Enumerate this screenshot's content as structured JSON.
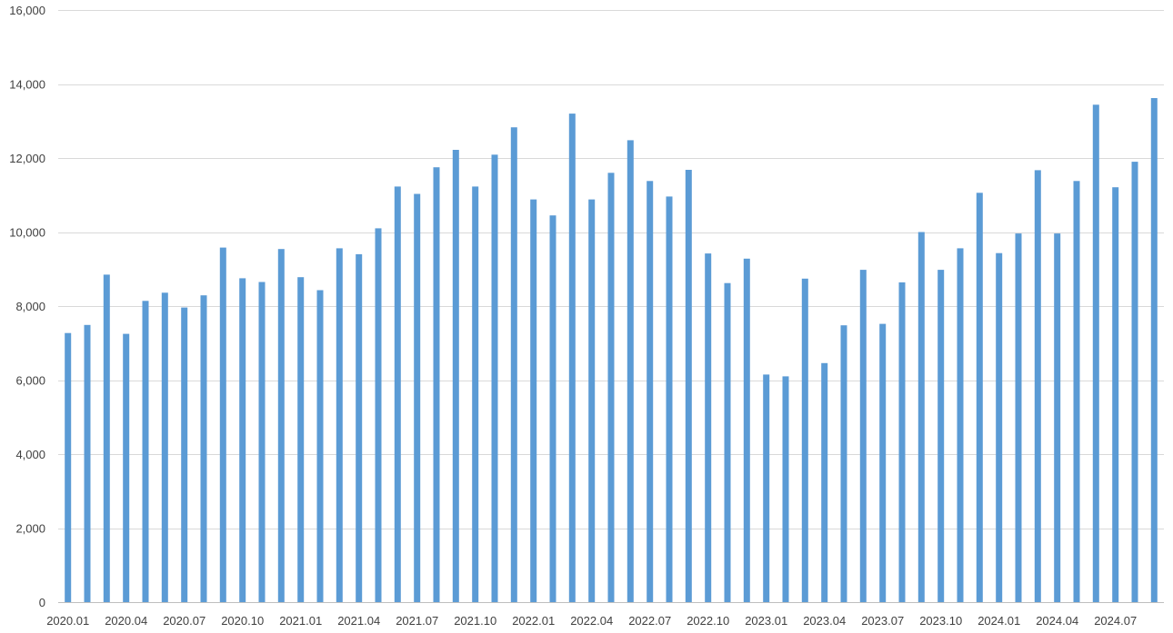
{
  "chart_data": {
    "type": "bar",
    "title": "",
    "xlabel": "",
    "ylabel": "",
    "ylim": [
      0,
      16000
    ],
    "yticks": [
      0,
      2000,
      4000,
      6000,
      8000,
      10000,
      12000,
      14000,
      16000
    ],
    "ytick_labels": [
      "0",
      "2,000",
      "4,000",
      "6,000",
      "8,000",
      "10,000",
      "12,000",
      "14,000",
      "16,000"
    ],
    "grid": true,
    "legend": "none",
    "bar_color": "#5b9bd5",
    "categories": [
      "2020.01",
      "2020.02",
      "2020.03",
      "2020.04",
      "2020.05",
      "2020.06",
      "2020.07",
      "2020.08",
      "2020.09",
      "2020.10",
      "2020.11",
      "2020.12",
      "2021.01",
      "2021.02",
      "2021.03",
      "2021.04",
      "2021.05",
      "2021.06",
      "2021.07",
      "2021.08",
      "2021.09",
      "2021.10",
      "2021.11",
      "2021.12",
      "2022.01",
      "2022.02",
      "2022.03",
      "2022.04",
      "2022.05",
      "2022.06",
      "2022.07",
      "2022.08",
      "2022.09",
      "2022.10",
      "2022.11",
      "2022.12",
      "2023.01",
      "2023.02",
      "2023.03",
      "2023.04",
      "2023.05",
      "2023.06",
      "2023.07",
      "2023.08",
      "2023.09",
      "2023.10",
      "2023.11",
      "2023.12",
      "2024.01",
      "2024.02",
      "2024.03",
      "2024.04",
      "2024.05",
      "2024.06",
      "2024.07",
      "2024.08",
      "2024.09"
    ],
    "xtick_labels": [
      "2020.01",
      "",
      "",
      "2020.04",
      "",
      "",
      "2020.07",
      "",
      "",
      "2020.10",
      "",
      "",
      "2021.01",
      "",
      "",
      "2021.04",
      "",
      "",
      "2021.07",
      "",
      "",
      "2021.10",
      "",
      "",
      "2022.01",
      "",
      "",
      "2022.04",
      "",
      "",
      "2022.07",
      "",
      "",
      "2022.10",
      "",
      "",
      "2023.01",
      "",
      "",
      "2023.04",
      "",
      "",
      "2023.07",
      "",
      "",
      "2023.10",
      "",
      "",
      "2024.01",
      "",
      "",
      "2024.04",
      "",
      "",
      "2024.07",
      "",
      ""
    ],
    "values": [
      7270,
      7490,
      8850,
      7250,
      8140,
      8360,
      7960,
      8290,
      9580,
      8750,
      8650,
      9540,
      8780,
      8430,
      9560,
      9400,
      10100,
      11230,
      11030,
      11750,
      12220,
      11230,
      12090,
      12830,
      10880,
      10450,
      13200,
      10880,
      11600,
      12480,
      11380,
      10960,
      11680,
      9420,
      8620,
      9280,
      6150,
      6100,
      8740,
      6460,
      7480,
      8980,
      7520,
      8640,
      10000,
      8980,
      9560,
      11060,
      9430,
      9960,
      11670,
      9960,
      11380,
      13440,
      11210,
      11900,
      13620
    ]
  }
}
